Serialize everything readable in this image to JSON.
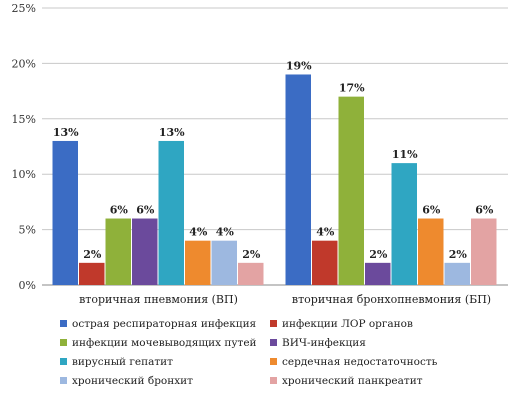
{
  "chart_data": {
    "type": "bar",
    "categories": [
      "вторичная пневмония (ВП)",
      "вторичная бронхопневмония (БП)"
    ],
    "yticks": [
      "0%",
      "5%",
      "10%",
      "15%",
      "20%",
      "25%"
    ],
    "ylim": [
      0,
      25
    ],
    "grid": true,
    "legend_position": "bottom",
    "series": [
      {
        "name": "острая респираторная инфекция",
        "color": "#3b6cc4",
        "values": [
          13,
          19
        ],
        "labels": [
          "13%",
          "19%"
        ]
      },
      {
        "name": "инфекции ЛОР органов",
        "color": "#c0392b",
        "values": [
          2,
          4
        ],
        "labels": [
          "2%",
          "4%"
        ]
      },
      {
        "name": "инфекции мочевыводящих путей",
        "color": "#8fb13a",
        "values": [
          6,
          17
        ],
        "labels": [
          "6%",
          "17%"
        ]
      },
      {
        "name": "ВИЧ-инфекция",
        "color": "#6b4a9c",
        "values": [
          6,
          2
        ],
        "labels": [
          "6%",
          "2%"
        ]
      },
      {
        "name": "вирусный гепатит",
        "color": "#2fa6c2",
        "values": [
          13,
          11
        ],
        "labels": [
          "13%",
          "11%"
        ]
      },
      {
        "name": "сердечная недостаточность",
        "color": "#ee8a2e",
        "values": [
          4,
          6
        ],
        "labels": [
          "4%",
          "6%"
        ]
      },
      {
        "name": "хронический бронхит",
        "color": "#9db8e0",
        "values": [
          4,
          2
        ],
        "labels": [
          "4%",
          "2%"
        ]
      },
      {
        "name": "хронический панкреатит",
        "color": "#e3a3a3",
        "values": [
          2,
          6
        ],
        "labels": [
          "2%",
          "6%"
        ]
      }
    ]
  }
}
